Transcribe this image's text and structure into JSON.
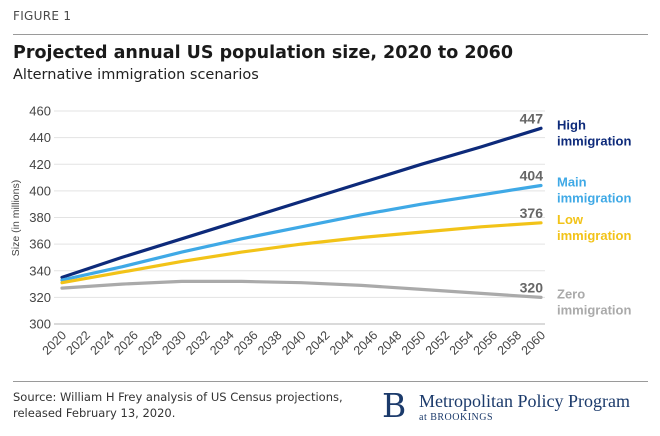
{
  "figure_label": "FIGURE 1",
  "source_text": "Source: William H Frey analysis of US Census projections, released February 13, 2020.",
  "logo": {
    "letter": "B",
    "name": "Metropolitan Policy Program",
    "sub_prefix": "at",
    "sub_name": "BROOKINGS",
    "color": "#1b3a6b"
  },
  "chart_data": {
    "type": "line",
    "title": "Projected annual US population size, 2020 to 2060",
    "subtitle": "Alternative immigration scenarios",
    "xlabel": "",
    "ylabel": "Size (in millions)",
    "ylim": [
      300,
      460
    ],
    "yticks": [
      300,
      320,
      340,
      360,
      380,
      400,
      420,
      440,
      460
    ],
    "xlim": [
      2020,
      2060
    ],
    "xticks": [
      2020,
      2022,
      2024,
      2026,
      2028,
      2030,
      2032,
      2034,
      2036,
      2038,
      2040,
      2042,
      2044,
      2046,
      2048,
      2050,
      2052,
      2054,
      2056,
      2058,
      2060
    ],
    "grid": true,
    "series": [
      {
        "name": "High immigration",
        "legend_lines": [
          "High",
          "immigration"
        ],
        "color": "#0d2a7a",
        "end_label": "447",
        "x": [
          2020,
          2025,
          2030,
          2035,
          2040,
          2045,
          2050,
          2055,
          2060
        ],
        "values": [
          335,
          350,
          364,
          378,
          392,
          406,
          420,
          433,
          447
        ]
      },
      {
        "name": "Main immigration",
        "legend_lines": [
          "Main",
          "immigration"
        ],
        "color": "#3fa9e6",
        "end_label": "404",
        "x": [
          2020,
          2025,
          2030,
          2035,
          2040,
          2045,
          2050,
          2055,
          2060
        ],
        "values": [
          333,
          343,
          354,
          364,
          373,
          382,
          390,
          397,
          404
        ]
      },
      {
        "name": "Low immigration",
        "legend_lines": [
          "Low",
          "immigration"
        ],
        "color": "#f2c318",
        "end_label": "376",
        "x": [
          2020,
          2025,
          2030,
          2035,
          2040,
          2045,
          2050,
          2055,
          2060
        ],
        "values": [
          331,
          339,
          347,
          354,
          360,
          365,
          369,
          373,
          376
        ]
      },
      {
        "name": "Zero immigration",
        "legend_lines": [
          "Zero",
          "immigration"
        ],
        "color": "#aaaaaa",
        "end_label": "320",
        "x": [
          2020,
          2025,
          2030,
          2035,
          2040,
          2045,
          2050,
          2055,
          2060
        ],
        "values": [
          327,
          330,
          332,
          332,
          331,
          329,
          326,
          323,
          320
        ]
      }
    ]
  }
}
